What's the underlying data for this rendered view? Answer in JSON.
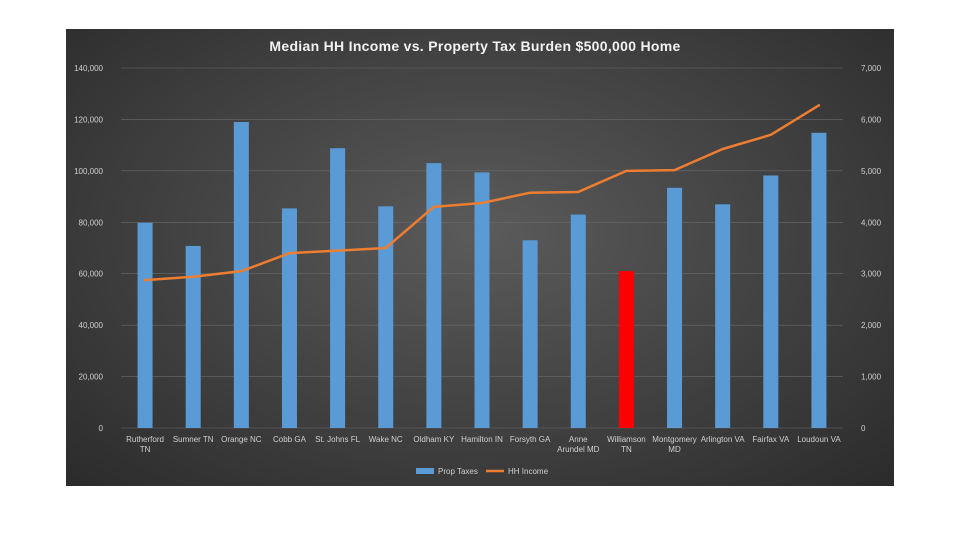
{
  "chart_data": {
    "type": "bar",
    "title": "Median  HH Income  vs.  Property  Tax  Burden  $500,000  Home",
    "categories": [
      [
        "Rutherford",
        "TN"
      ],
      [
        "Sumner TN"
      ],
      [
        "Orange NC"
      ],
      [
        "Cobb GA"
      ],
      [
        "St. Johns FL"
      ],
      [
        "Wake NC"
      ],
      [
        "Oldham KY"
      ],
      [
        "Hamilton IN"
      ],
      [
        "Forsyth GA"
      ],
      [
        "Anne",
        "Arundel MD"
      ],
      [
        "Williamson",
        "TN"
      ],
      [
        "Montgomery",
        "MD"
      ],
      [
        "Arlington VA"
      ],
      [
        "Fairfax VA"
      ],
      [
        "Loudoun VA"
      ]
    ],
    "series": [
      {
        "name": "Prop Taxes",
        "type": "bar",
        "axis": "right",
        "color": "#5b9bd5",
        "highlight_index": 10,
        "highlight_color": "#ff0000",
        "values": [
          3990,
          3540,
          5950,
          4270,
          5440,
          4310,
          5150,
          4970,
          3650,
          4150,
          3050,
          4670,
          4350,
          4910,
          5740
        ]
      },
      {
        "name": "HH Income",
        "type": "line",
        "axis": "left",
        "color": "#ed7d31",
        "values": [
          57500,
          58800,
          61000,
          68000,
          69000,
          70000,
          86000,
          87500,
          91500,
          91800,
          100000,
          100300,
          108500,
          114000,
          125500
        ]
      }
    ],
    "y_left": {
      "min": 0,
      "max": 140000,
      "ticks": [
        "0",
        "20,000",
        "40,000",
        "60,000",
        "80,000",
        "100,000",
        "120,000",
        "140,000"
      ]
    },
    "y_right": {
      "min": 0,
      "max": 7000,
      "ticks": [
        "0",
        "1,000",
        "2,000",
        "3,000",
        "4,000",
        "5,000",
        "6,000",
        "7,000"
      ]
    },
    "legend": {
      "position": "bottom",
      "items": [
        "Prop Taxes",
        "HH Income"
      ]
    },
    "grid": true
  }
}
